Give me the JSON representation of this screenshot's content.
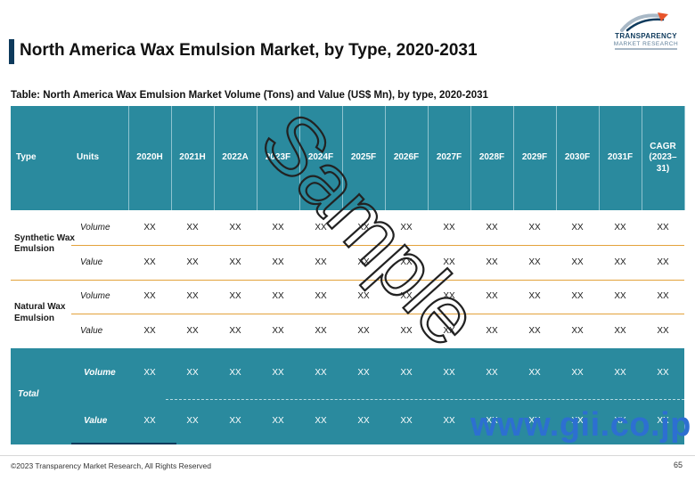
{
  "header": {
    "title": "North America Wax Emulsion Market, by Type, 2020-2031",
    "logo_name": "TRANSPARENCY",
    "logo_sub": "MARKET RESEARCH"
  },
  "table": {
    "caption": "Table: North America Wax Emulsion Market Volume (Tons) and Value (US$ Mn), by type, 2020-2031",
    "col_type": "Type",
    "col_units": "Units",
    "years": [
      "2020H",
      "2021H",
      "2022A",
      "2023F",
      "2024F",
      "2025F",
      "2026F",
      "2027F",
      "2028F",
      "2029F",
      "2030F",
      "2031F",
      "CAGR (2023–31)"
    ],
    "groups": [
      {
        "type": "Synthetic Wax Emulsion",
        "rows": [
          {
            "unit": "Volume",
            "values": [
              "XX",
              "XX",
              "XX",
              "XX",
              "XX",
              "XX",
              "XX",
              "XX",
              "XX",
              "XX",
              "XX",
              "XX",
              "XX"
            ]
          },
          {
            "unit": "Value",
            "values": [
              "XX",
              "XX",
              "XX",
              "XX",
              "XX",
              "XX",
              "XX",
              "XX",
              "XX",
              "XX",
              "XX",
              "XX",
              "XX"
            ]
          }
        ]
      },
      {
        "type": "Natural Wax Emulsion",
        "rows": [
          {
            "unit": "Volume",
            "values": [
              "XX",
              "XX",
              "XX",
              "XX",
              "XX",
              "XX",
              "XX",
              "XX",
              "XX",
              "XX",
              "XX",
              "XX",
              "XX"
            ]
          },
          {
            "unit": "Value",
            "values": [
              "XX",
              "XX",
              "XX",
              "XX",
              "XX",
              "XX",
              "XX",
              "XX",
              "XX",
              "XX",
              "XX",
              "XX",
              "XX"
            ]
          }
        ]
      }
    ],
    "total": {
      "label": "Total",
      "rows": [
        {
          "unit": "Volume",
          "values": [
            "XX",
            "XX",
            "XX",
            "XX",
            "XX",
            "XX",
            "XX",
            "XX",
            "XX",
            "XX",
            "XX",
            "XX",
            "XX"
          ]
        },
        {
          "unit": "Value",
          "values": [
            "XX",
            "XX",
            "XX",
            "XX",
            "XX",
            "XX",
            "XX",
            "XX",
            "XX",
            "XX",
            "XX",
            "XX",
            "XX"
          ]
        }
      ]
    }
  },
  "watermarks": {
    "sample": "Sample",
    "gii": "www.gii.co.jp"
  },
  "footer": {
    "copyright": "©2023 Transparency Market Research, All Rights Reserved",
    "page": "65"
  },
  "colors": {
    "header_teal": "#2a8a9e",
    "row_line_orange": "#e3a23b",
    "title_navy": "#0e3a5c",
    "gii_blue": "#2d6fd1"
  }
}
